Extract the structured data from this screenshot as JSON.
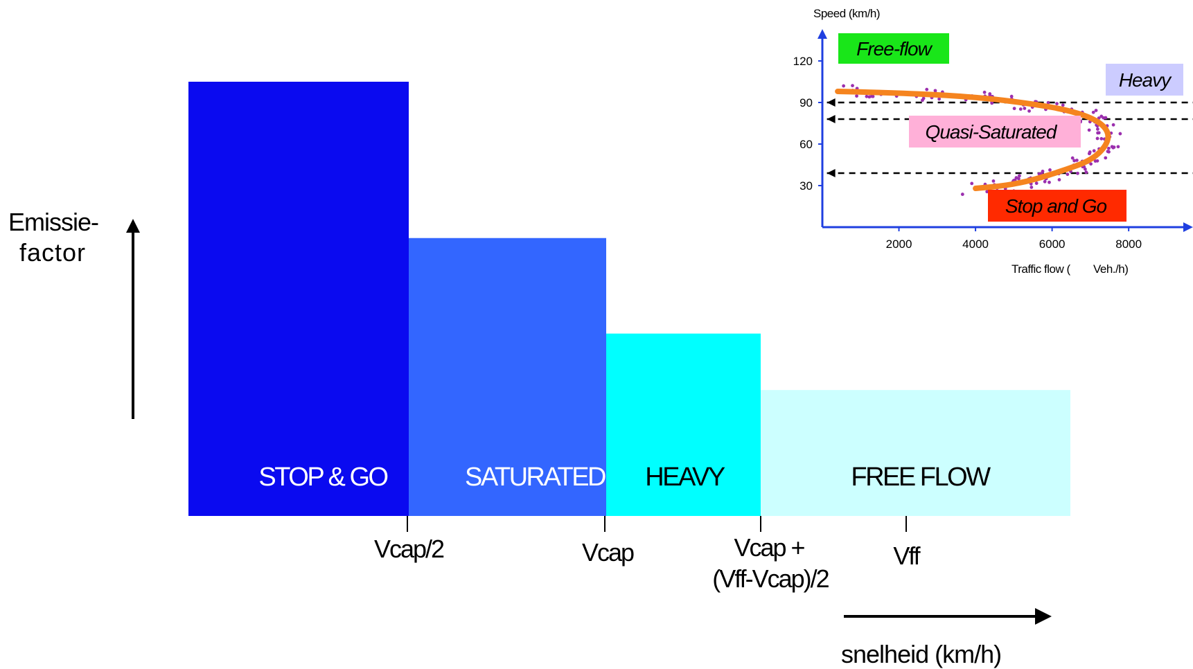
{
  "chart_data": [
    {
      "type": "bar",
      "title": "",
      "ylabel_line1": "Emissie-",
      "ylabel_line2": "factor",
      "xlabel": "snelheid (km/h)",
      "categories": [
        "STOP & GO",
        "SATURATED",
        "HEAVY",
        "FREE FLOW"
      ],
      "values": [
        1.0,
        0.64,
        0.42,
        0.29
      ],
      "colors": [
        "#0a0af0",
        "#3366ff",
        "#00ffff",
        "#ccffff"
      ],
      "label_colors": [
        "#ffffff",
        "#ffffff",
        "#000000",
        "#000000"
      ],
      "x_ticks": [
        {
          "line1": "Vcap/2",
          "line2": ""
        },
        {
          "line1": "Vcap",
          "line2": ""
        },
        {
          "line1": "Vcap +",
          "line2": "(Vff-Vcap)/2"
        },
        {
          "line1": "Vff",
          "line2": ""
        }
      ]
    },
    {
      "type": "scatter",
      "ylabel": "Speed (km/h)",
      "xlabel_part1": "Traffic flow (",
      "xlabel_part2": "Veh./h)",
      "y_ticks": [
        "120",
        "90",
        "60",
        "30"
      ],
      "x_ticks": [
        "2000",
        "4000",
        "6000",
        "8000"
      ],
      "xlim": [
        0,
        9300
      ],
      "ylim": [
        0,
        120
      ],
      "regions": [
        {
          "label": "Free-flow",
          "color": "#19e619"
        },
        {
          "label": "Heavy",
          "color": "#ccccff"
        },
        {
          "label": "Quasi-Saturated",
          "color": "#ffb0d8"
        },
        {
          "label": "Stop and Go",
          "color": "#ff2a00"
        }
      ],
      "threshold_speeds": [
        90,
        78,
        39
      ],
      "curve": [
        [
          400,
          98
        ],
        [
          2000,
          97
        ],
        [
          4000,
          94
        ],
        [
          5500,
          89
        ],
        [
          6500,
          84
        ],
        [
          7200,
          77
        ],
        [
          7500,
          68
        ],
        [
          7400,
          58
        ],
        [
          7000,
          48
        ],
        [
          6300,
          41
        ],
        [
          5500,
          34
        ],
        [
          4800,
          30
        ],
        [
          4000,
          28
        ]
      ],
      "curve_color": "#f5841f",
      "point_color": "#9b2fae"
    }
  ]
}
